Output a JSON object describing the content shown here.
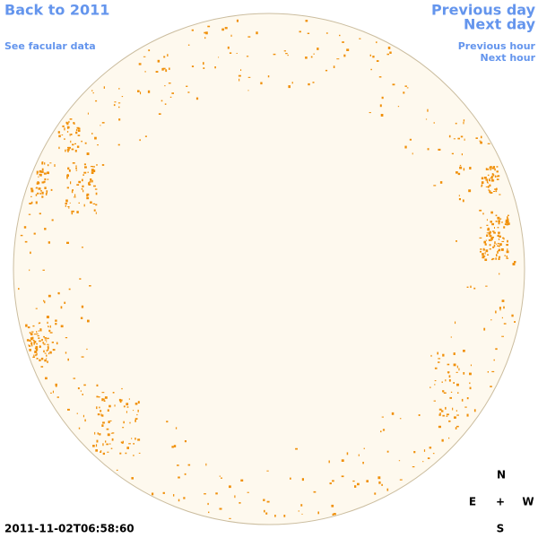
{
  "links": {
    "back": "Back to 2011",
    "facular": "See facular data",
    "previous_day": "Previous day",
    "next_day": "Next day",
    "previous_hour": "Previous hour",
    "next_hour": "Next hour"
  },
  "compass": {
    "north": "N",
    "east": "E",
    "center": "+",
    "west": "W",
    "south": "S"
  },
  "timestamp": "2011-11-02T06:58:60"
}
